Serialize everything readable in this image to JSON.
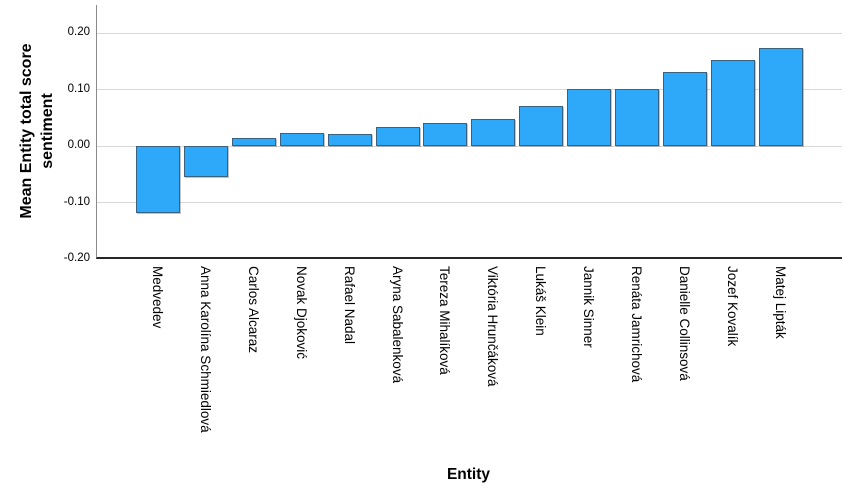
{
  "chart_data": {
    "type": "bar",
    "title": "",
    "xlabel": "Entity",
    "ylabel": "Mean Entity total score sentiment",
    "ylabel_lines": [
      "Mean Entity total score",
      "sentiment"
    ],
    "categories": [
      "Medvedev",
      "Anna Karolína Schmiedlová",
      "Carlos Alcaraz",
      "Novak Djoković",
      "Rafael Nadal",
      "Aryna Sabalenková",
      "Tereza Mihalíková",
      "Viktória Hrunčáková",
      "Lukáš Klein",
      "Jannik Sinner",
      "Renáta Jamrichová",
      "Danielle Collinsová",
      "Jozef Kovalík",
      "Matej Lipták"
    ],
    "values": [
      -0.12,
      -0.055,
      0.014,
      0.022,
      0.021,
      0.033,
      0.041,
      0.047,
      0.07,
      0.1,
      0.1,
      0.131,
      0.152,
      0.173
    ],
    "yticks": [
      {
        "label": "0.20",
        "value": 0.2
      },
      {
        "label": "0.10",
        "value": 0.1
      },
      {
        "label": "0.00",
        "value": 0.0
      },
      {
        "label": "-0.10",
        "value": -0.1
      },
      {
        "label": "-0.20",
        "value": -0.2
      }
    ],
    "ylim": [
      -0.2,
      0.245
    ],
    "grid": true,
    "legend": null,
    "colors": {
      "bar_fill": "#2EA9F9",
      "bar_border": "#3A627F",
      "gridline": "#D8D8D8",
      "y_axis_line": "#8A8A8A",
      "x_axis_line": "#262626",
      "text": "#000000"
    }
  }
}
